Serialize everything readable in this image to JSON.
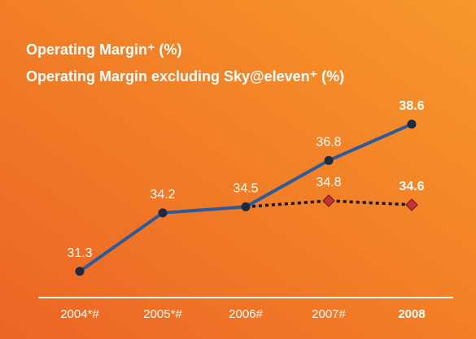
{
  "chart_data": {
    "type": "line",
    "title": "Operating Margin⁺ (%)",
    "subtitle": "Operating Margin excluding Sky@eleven⁺ (%)",
    "categories": [
      "2004*#",
      "2005*#",
      "2006#",
      "2007#",
      "2008"
    ],
    "series": [
      {
        "name": "Operating Margin⁺ (%)",
        "color": "#2b5b9b",
        "values": [
          31.3,
          34.2,
          34.5,
          36.8,
          38.6
        ]
      },
      {
        "name": "Operating Margin excluding Sky@eleven⁺ (%)",
        "color": "#111111",
        "values": [
          null,
          null,
          34.5,
          34.8,
          34.6
        ]
      }
    ],
    "ylim": [
      30,
      40
    ]
  }
}
